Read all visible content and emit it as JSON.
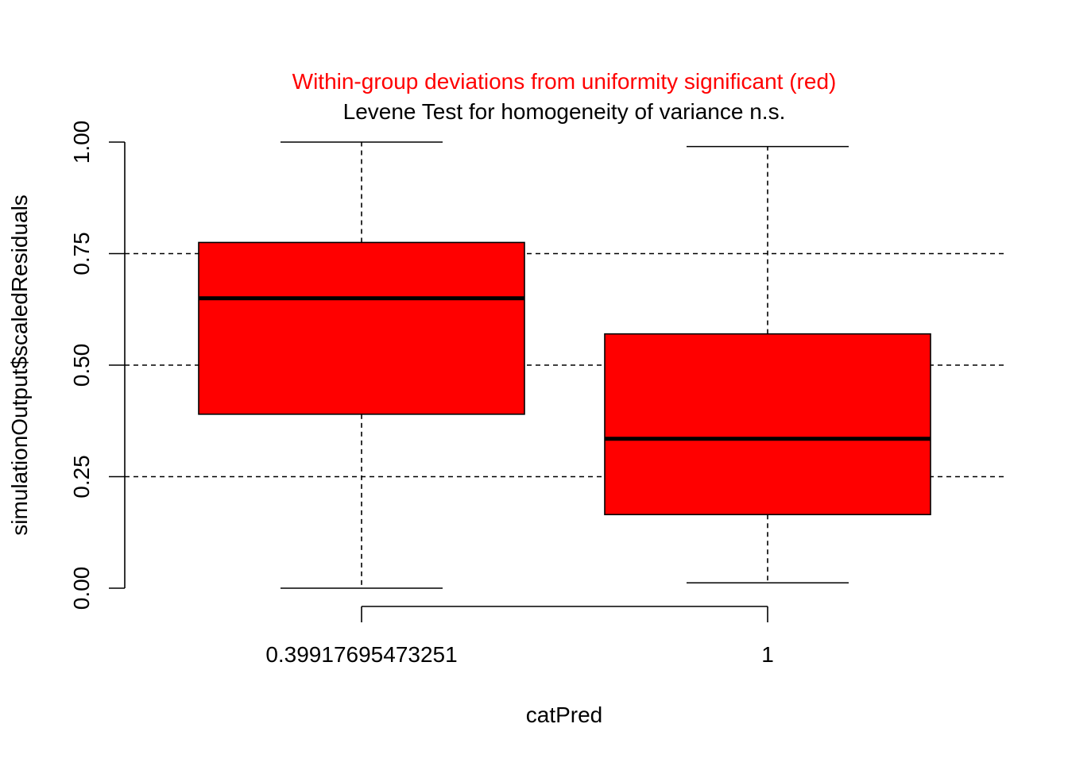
{
  "chart_data": {
    "type": "boxplot",
    "title": "Within-group deviations from uniformity significant (red)",
    "subtitle": "Levene Test for homogeneity of variance n.s.",
    "title_color": "#ff0000",
    "subtitle_color": "#000000",
    "xlabel": "catPred",
    "ylabel": "simulationOutput$scaledResiduals",
    "ylim": [
      0,
      1
    ],
    "y_ticks": [
      0,
      0.25,
      0.5,
      0.75,
      1
    ],
    "y_tick_labels": [
      "0.00",
      "0.25",
      "0.50",
      "0.75",
      "1.00"
    ],
    "categories": [
      "0.39917695473251",
      "1"
    ],
    "grid": {
      "horizontal_lines": [
        0.25,
        0.5,
        0.75
      ],
      "style": "dashed",
      "color": "#000000"
    },
    "box_fill": "#ff0000",
    "boxes": [
      {
        "category": "0.39917695473251",
        "min": 0.0,
        "q1": 0.39,
        "median": 0.65,
        "q3": 0.775,
        "max": 1.0
      },
      {
        "category": "1",
        "min": 0.012,
        "q1": 0.165,
        "median": 0.335,
        "q3": 0.57,
        "max": 0.99
      }
    ]
  }
}
